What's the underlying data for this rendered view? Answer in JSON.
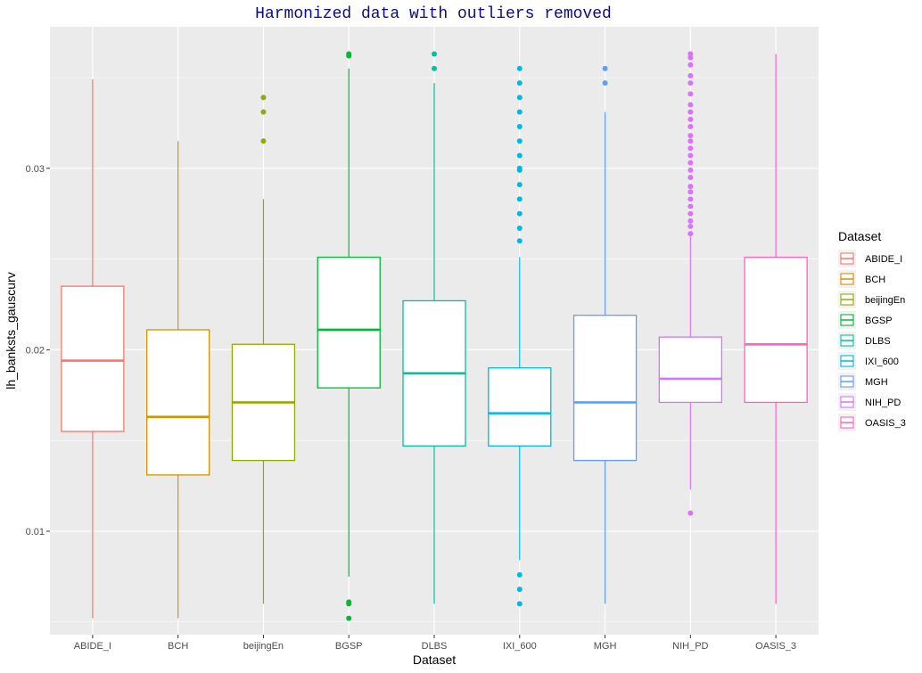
{
  "chart_data": {
    "type": "boxplot",
    "title": "Harmonized data with outliers removed",
    "xlabel": "Dataset",
    "ylabel": "lh_banksts_gauscurv",
    "ylim": [
      0.0043,
      0.0378
    ],
    "yticks": [
      0.01,
      0.02,
      0.03
    ],
    "ytick_labels": [
      "0.01",
      "0.02",
      "0.03"
    ],
    "grid": true,
    "legend": {
      "title": "Dataset",
      "position": "right"
    },
    "categories": [
      "ABIDE_I",
      "BCH",
      "beijingEn",
      "BGSP",
      "DLBS",
      "IXI_600",
      "MGH",
      "NIH_PD",
      "OASIS_3"
    ],
    "series": [
      {
        "name": "ABIDE_I",
        "color": "#F8766D",
        "whisker_low": 0.0052,
        "q1": 0.0155,
        "median": 0.0194,
        "q3": 0.0235,
        "whisker_high": 0.0349,
        "outliers": []
      },
      {
        "name": "BCH",
        "color": "#D39200",
        "whisker_low": 0.0052,
        "q1": 0.0131,
        "median": 0.0163,
        "q3": 0.0211,
        "whisker_high": 0.0315,
        "outliers": []
      },
      {
        "name": "beijingEn",
        "color": "#93AA00",
        "whisker_low": 0.006,
        "q1": 0.0139,
        "median": 0.0171,
        "q3": 0.0203,
        "whisker_high": 0.0283,
        "outliers": [
          0.0315,
          0.0331,
          0.0339
        ]
      },
      {
        "name": "BGSP",
        "color": "#00BA38",
        "whisker_low": 0.0075,
        "q1": 0.0179,
        "median": 0.0211,
        "q3": 0.0251,
        "whisker_high": 0.0355,
        "outliers": [
          0.0052,
          0.006,
          0.0061,
          0.0362,
          0.0363
        ]
      },
      {
        "name": "DLBS",
        "color": "#00C19F",
        "whisker_low": 0.006,
        "q1": 0.0147,
        "median": 0.0187,
        "q3": 0.0227,
        "whisker_high": 0.0347,
        "outliers": [
          0.0355,
          0.0363
        ]
      },
      {
        "name": "IXI_600",
        "color": "#00B9E3",
        "whisker_low": 0.0084,
        "q1": 0.0147,
        "median": 0.0165,
        "q3": 0.019,
        "whisker_high": 0.0251,
        "outliers": [
          0.006,
          0.0068,
          0.0076,
          0.026,
          0.0267,
          0.0275,
          0.0283,
          0.0291,
          0.0299,
          0.03,
          0.0307,
          0.0315,
          0.0323,
          0.0331,
          0.0339,
          0.0347,
          0.0355
        ]
      },
      {
        "name": "MGH",
        "color": "#619CFF",
        "whisker_low": 0.006,
        "q1": 0.0139,
        "median": 0.0171,
        "q3": 0.0219,
        "whisker_high": 0.0331,
        "outliers": [
          0.0347,
          0.0355
        ]
      },
      {
        "name": "NIH_PD",
        "color": "#DB72FB",
        "whisker_low": 0.0123,
        "q1": 0.0171,
        "median": 0.0184,
        "q3": 0.0207,
        "whisker_high": 0.0263,
        "outliers": [
          0.011,
          0.0264,
          0.0268,
          0.0271,
          0.0275,
          0.0279,
          0.0283,
          0.0287,
          0.029,
          0.0295,
          0.0299,
          0.0303,
          0.0307,
          0.0311,
          0.0315,
          0.0318,
          0.0323,
          0.0327,
          0.0331,
          0.0335,
          0.0341,
          0.0347,
          0.0351,
          0.0357,
          0.0361,
          0.0363
        ]
      },
      {
        "name": "OASIS_3",
        "color": "#FF61C3",
        "whisker_low": 0.006,
        "q1": 0.0171,
        "median": 0.0203,
        "q3": 0.0251,
        "whisker_high": 0.0363,
        "outliers": []
      }
    ]
  }
}
